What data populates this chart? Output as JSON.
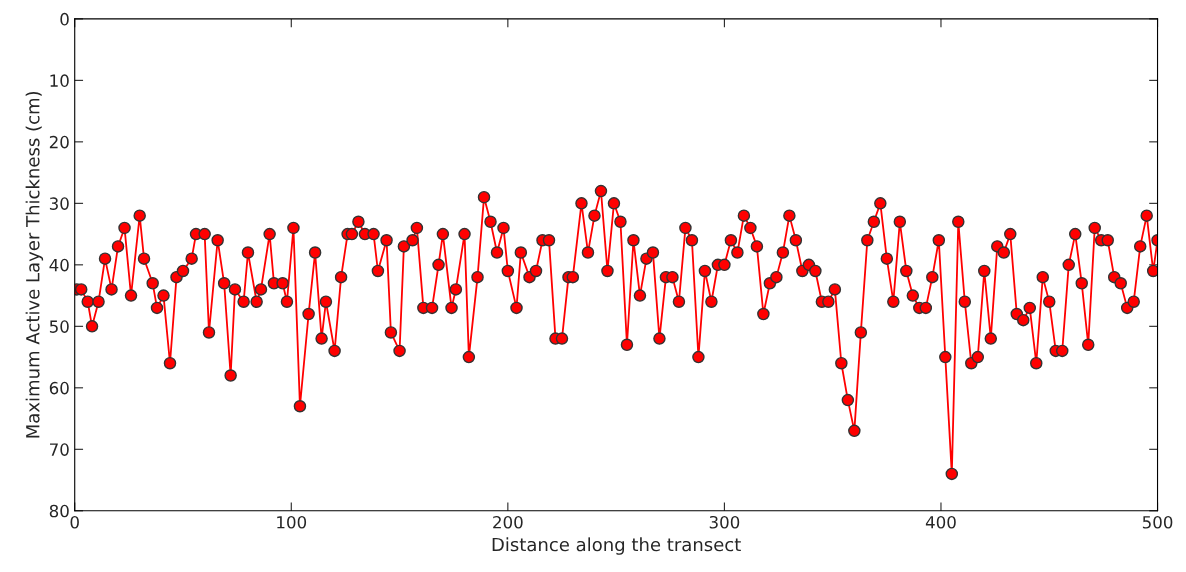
{
  "chart_data": {
    "type": "line",
    "xlabel": "Distance along the transect",
    "ylabel": "Maximum Active Layer Thickness (cm)",
    "xlim": [
      0,
      500
    ],
    "xticks": [
      0,
      100,
      200,
      300,
      400,
      500
    ],
    "ylim": [
      80,
      0
    ],
    "yticks": [
      0,
      10,
      20,
      30,
      40,
      50,
      60,
      70,
      80
    ],
    "grid": false,
    "marker": "circle",
    "line_style": "solid",
    "series": [
      {
        "color": "#ff0000",
        "x": [
          1,
          3,
          6,
          8,
          11,
          14,
          17,
          20,
          23,
          26,
          30,
          32,
          36,
          38,
          41,
          44,
          47,
          50,
          54,
          56,
          60,
          62,
          66,
          69,
          72,
          74,
          78,
          80,
          84,
          86,
          90,
          92,
          96,
          98,
          101,
          104,
          108,
          111,
          114,
          116,
          120,
          123,
          126,
          128,
          131,
          134,
          138,
          140,
          144,
          146,
          150,
          152,
          156,
          158,
          161,
          165,
          168,
          170,
          174,
          176,
          180,
          182,
          186,
          189,
          192,
          195,
          198,
          200,
          204,
          206,
          210,
          213,
          216,
          219,
          222,
          225,
          228,
          230,
          234,
          237,
          240,
          243,
          246,
          249,
          252,
          255,
          258,
          261,
          264,
          267,
          270,
          273,
          276,
          279,
          282,
          285,
          288,
          291,
          294,
          297,
          300,
          303,
          306,
          309,
          312,
          315,
          318,
          321,
          324,
          327,
          330,
          333,
          336,
          339,
          342,
          345,
          348,
          351,
          354,
          357,
          360,
          363,
          366,
          369,
          372,
          375,
          378,
          381,
          384,
          387,
          390,
          393,
          396,
          399,
          402,
          405,
          408,
          411,
          414,
          417,
          420,
          423,
          426,
          429,
          432,
          435,
          438,
          441,
          444,
          447,
          450,
          453,
          456,
          459,
          462,
          465,
          468,
          471,
          474,
          477,
          480,
          483,
          486,
          489,
          492,
          495,
          498,
          500
        ],
        "values": [
          44,
          44,
          46,
          50,
          46,
          39,
          44,
          37,
          34,
          45,
          32,
          39,
          43,
          47,
          45,
          56,
          42,
          41,
          39,
          35,
          35,
          51,
          36,
          43,
          58,
          44,
          46,
          38,
          46,
          44,
          35,
          43,
          43,
          46,
          34,
          63,
          48,
          38,
          52,
          46,
          54,
          42,
          35,
          35,
          33,
          35,
          35,
          41,
          36,
          51,
          54,
          37,
          36,
          34,
          47,
          47,
          40,
          35,
          47,
          44,
          35,
          55,
          42,
          29,
          33,
          38,
          34,
          41,
          47,
          38,
          42,
          41,
          36,
          36,
          52,
          52,
          42,
          42,
          30,
          38,
          32,
          28,
          41,
          30,
          33,
          53,
          36,
          45,
          39,
          38,
          52,
          42,
          42,
          46,
          34,
          36,
          55,
          41,
          46,
          40,
          40,
          36,
          38,
          32,
          34,
          37,
          48,
          43,
          42,
          38,
          32,
          36,
          41,
          40,
          41,
          46,
          46,
          44,
          56,
          62,
          67,
          51,
          36,
          33,
          30,
          39,
          46,
          33,
          41,
          45,
          47,
          47,
          42,
          36,
          55,
          74,
          33,
          46,
          56,
          55,
          41,
          52,
          37,
          38,
          35,
          48,
          49,
          47,
          56,
          42,
          46,
          54,
          54,
          40,
          35,
          43,
          53,
          34,
          36,
          36,
          42,
          43,
          47,
          46,
          37,
          32,
          41,
          36
        ]
      }
    ]
  }
}
